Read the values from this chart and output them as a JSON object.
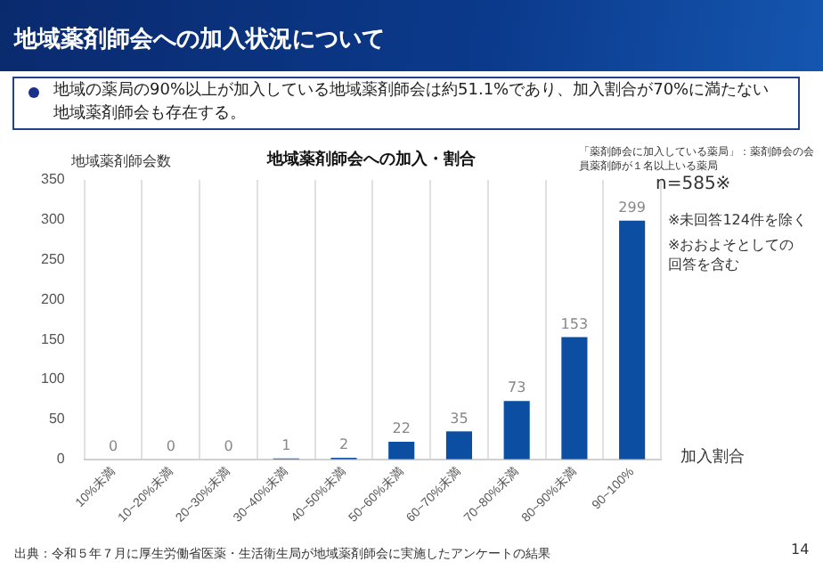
{
  "chart_data": {
    "type": "bar",
    "title": "地域薬剤師会への加入状況について",
    "subtitle": "地域の薬局の90%以上が加入している地域薬剤師会は約51.1%であり、加入割合が70%に満たない地域薬剤師会も存在する。",
    "categories": [
      "10%未満",
      "10~20%未満",
      "20~30%未満",
      "30~40%未満",
      "40~50%未満",
      "50~60%未満",
      "60~70%未満",
      "70~80%未満",
      "80~90%未満",
      "90~100%"
    ],
    "values": [
      0,
      0,
      0,
      1,
      2,
      22,
      35,
      73,
      153,
      299
    ],
    "color": "#0b4ea2",
    "xlabel": "加入割合",
    "ylabel": "地域薬剤師会数",
    "ylim": [
      0,
      350
    ],
    "yticks": [
      0,
      50,
      100,
      150,
      200,
      250,
      300,
      350
    ],
    "grid": "x",
    "data_labels": true,
    "annotations": [
      "地域薬剤師会への加入・割合",
      "「薬剤師会に加入している薬局」：薬剤師会の会員薬剤師が１名以上いる薬局",
      "n=585※",
      "※未回答124件を除く",
      "※おおよそとしての回答を含む",
      "出典：令和５年７月に厚生労働省医薬・生活衛生局が地域薬剤師会に実施したアンケートの結果",
      "14"
    ]
  }
}
